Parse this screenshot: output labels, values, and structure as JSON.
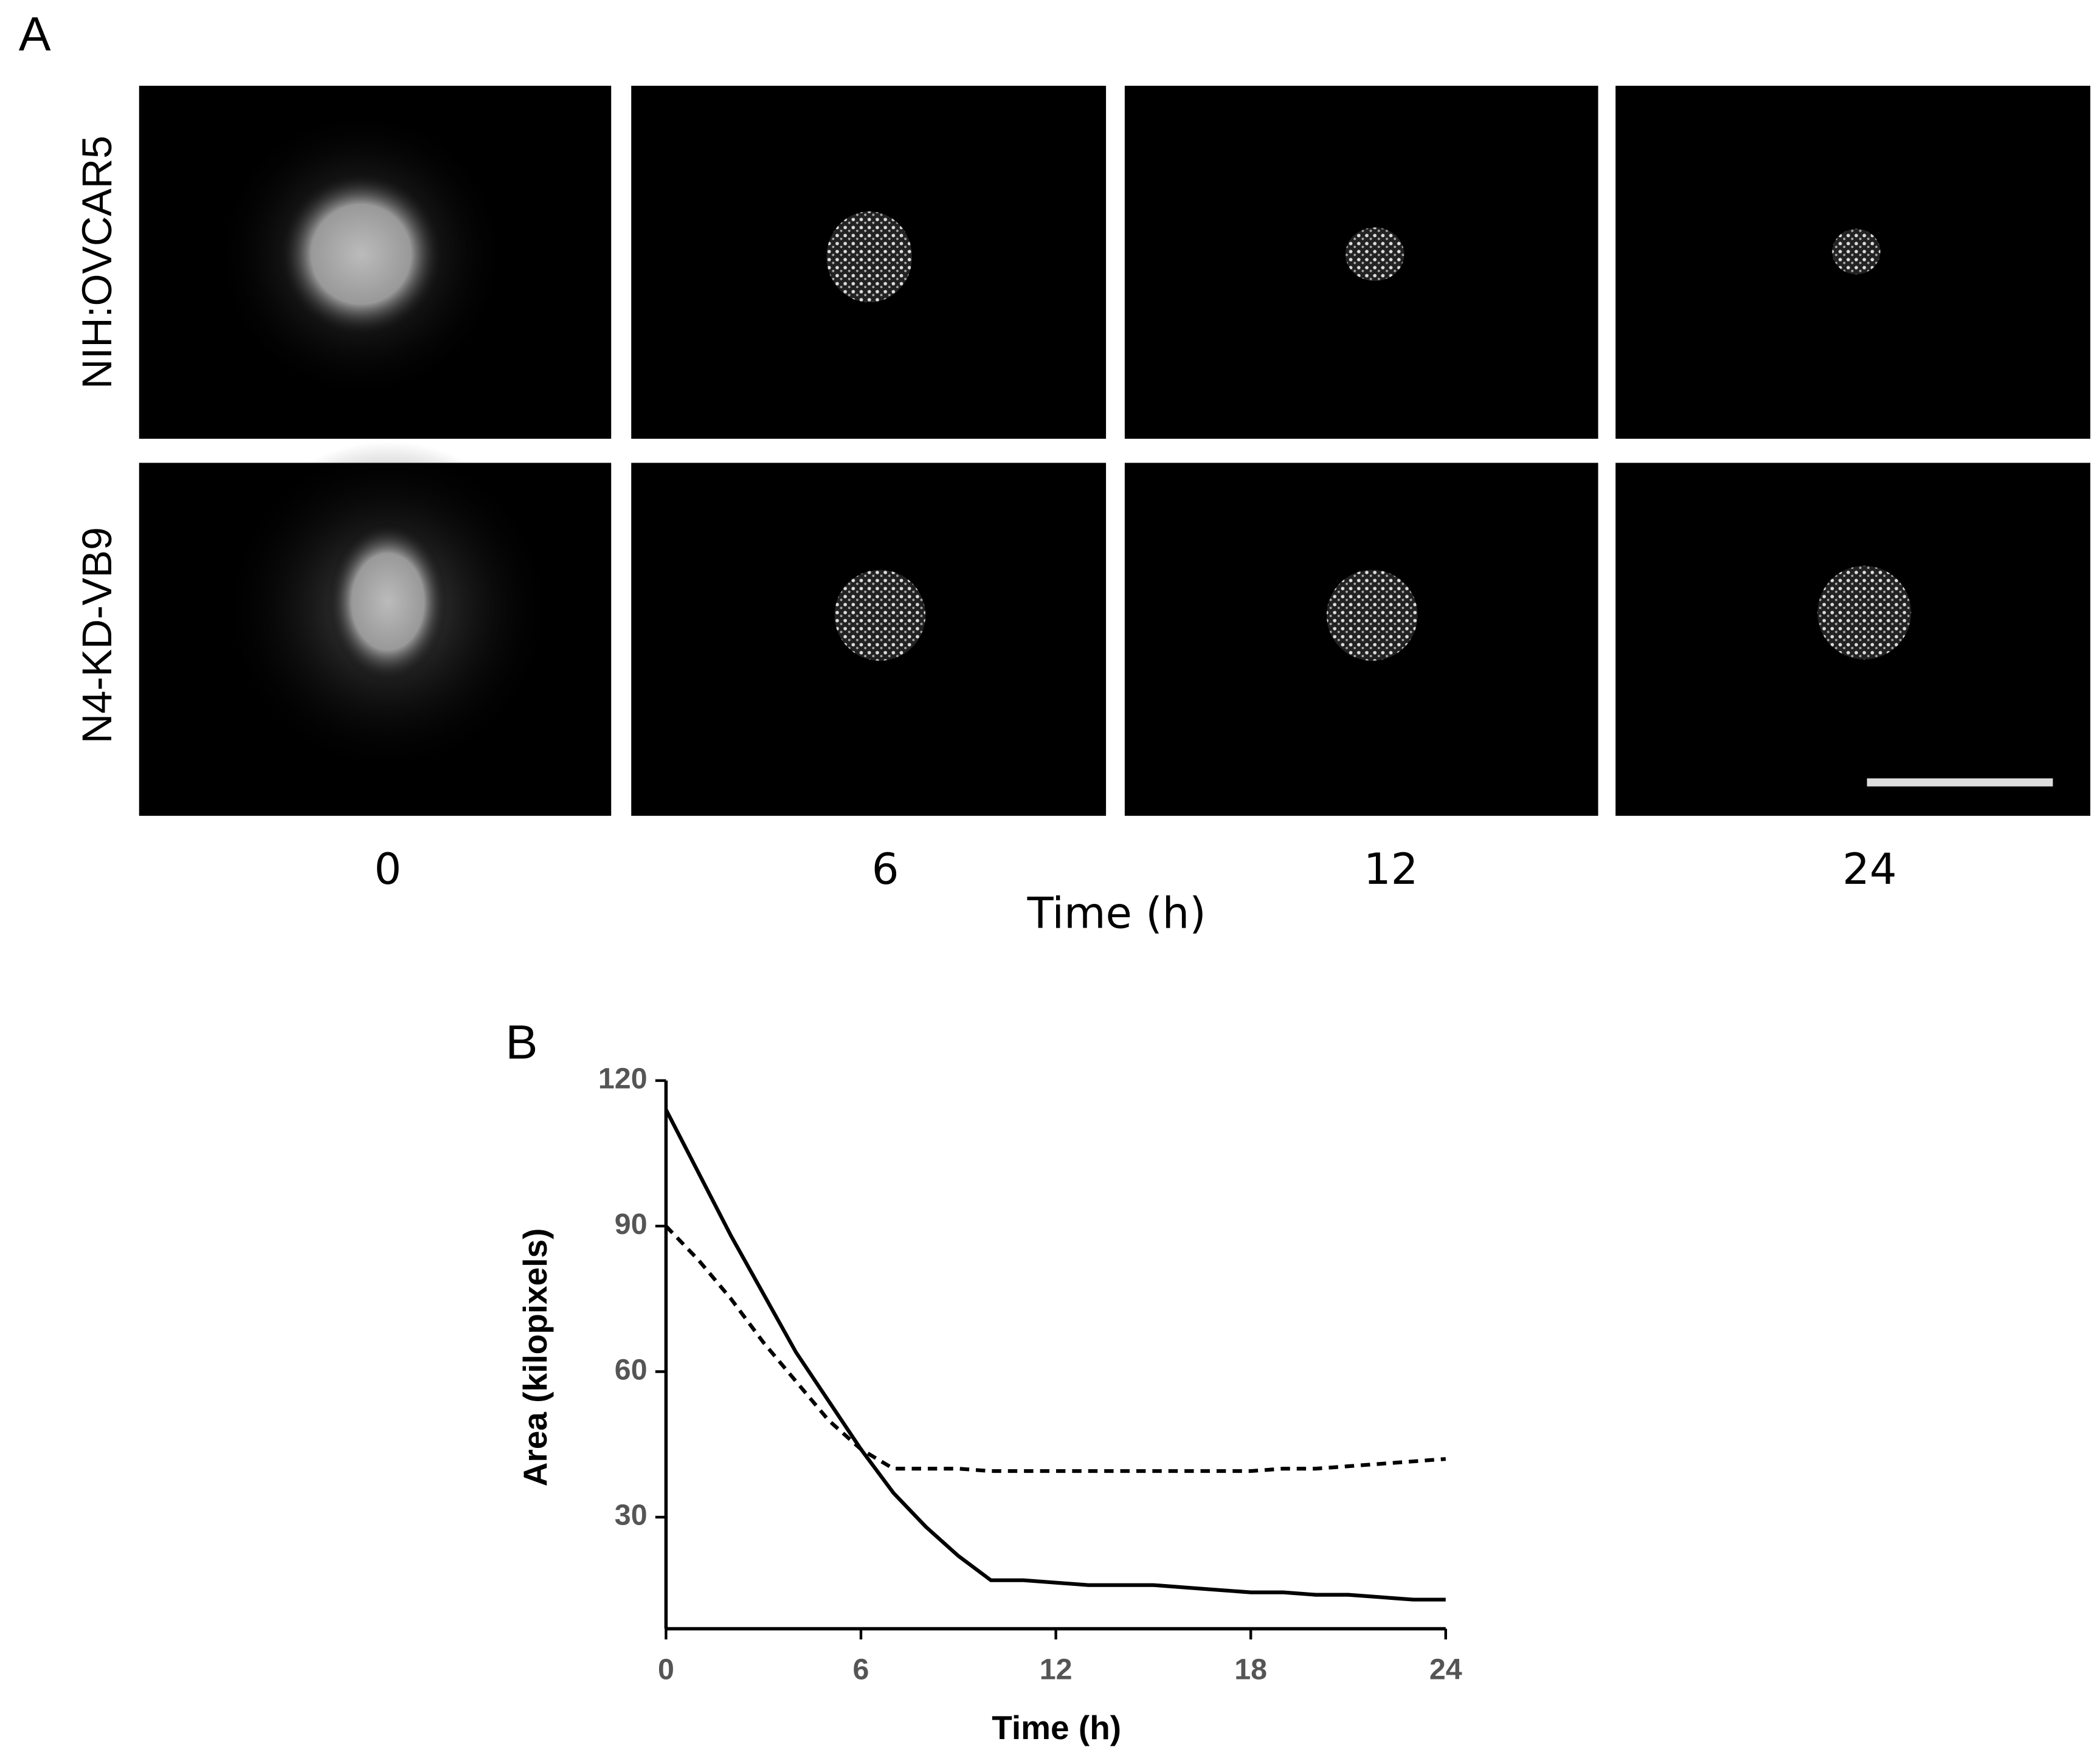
{
  "panel_a": {
    "label": "A",
    "rows": [
      "NIH:OVCAR5",
      "N4-KD-VB9"
    ],
    "columns": [
      "0",
      "6",
      "12",
      "24"
    ],
    "x_label": "Time (h)"
  },
  "panel_b": {
    "label": "B"
  },
  "chart_data": {
    "type": "line",
    "x_label": "Time (h)",
    "y_label": "Area (kilopixels)",
    "x": [
      0,
      1,
      2,
      3,
      4,
      5,
      6,
      7,
      8,
      9,
      10,
      11,
      12,
      13,
      14,
      15,
      16,
      17,
      18,
      19,
      20,
      21,
      22,
      23,
      24
    ],
    "series": [
      {
        "color": "#000000",
        "dashed": false,
        "values": [
          114,
          101,
          88,
          76,
          64,
          54,
          44,
          35,
          28,
          22,
          17,
          17,
          16.5,
          16,
          16,
          16,
          15.5,
          15,
          14.5,
          14.5,
          14,
          14,
          13.5,
          13,
          13
        ]
      },
      {
        "color": "#000000",
        "dashed": true,
        "values": [
          90,
          83,
          75,
          66,
          58,
          50,
          44,
          40,
          40,
          40,
          39.5,
          39.5,
          39.5,
          39.5,
          39.5,
          39.5,
          39.5,
          39.5,
          39.5,
          40,
          40,
          40.5,
          41,
          41.5,
          42
        ]
      }
    ],
    "xlim": [
      0,
      24
    ],
    "xticks": [
      0,
      6,
      12,
      18,
      24
    ],
    "ylim": [
      7,
      120
    ],
    "yticks": [
      30,
      60,
      90,
      120
    ]
  }
}
